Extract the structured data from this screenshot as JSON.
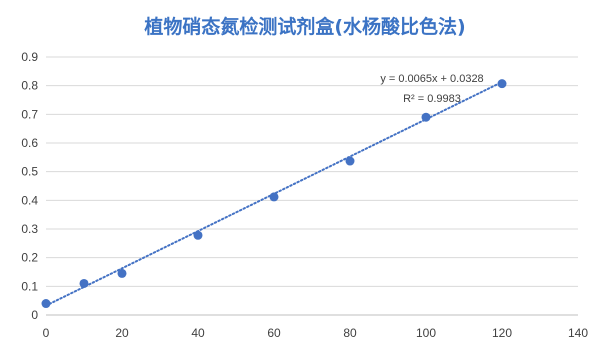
{
  "chart_data": {
    "type": "scatter",
    "title": "植物硝态氮检测试剂盒(水杨酸比色法)",
    "xlabel": "",
    "ylabel": "",
    "xlim": [
      0,
      140
    ],
    "ylim": [
      0,
      0.9
    ],
    "xticks": [
      0,
      20,
      40,
      60,
      80,
      100,
      120,
      140
    ],
    "yticks": [
      0,
      0.1,
      0.2,
      0.3,
      0.4,
      0.5,
      0.6,
      0.7,
      0.8,
      0.9
    ],
    "grid": "horizontal",
    "legend": "none",
    "colors": {
      "marker": "#4472c4",
      "trendline": "#4472c4",
      "grid": "#d9d9d9",
      "title": "#3b73c4",
      "text": "#404040"
    },
    "series": [
      {
        "x": [
          0,
          10,
          20,
          40,
          60,
          80,
          100,
          120
        ],
        "y": [
          0.04,
          0.11,
          0.145,
          0.278,
          0.412,
          0.537,
          0.69,
          0.807
        ]
      }
    ],
    "trendline": {
      "type": "linear",
      "slope": 0.0065,
      "intercept": 0.0328,
      "x_range": [
        0,
        120
      ],
      "equation": "y = 0.0065x + 0.0328",
      "r_squared": "R² = 0.9983"
    }
  }
}
